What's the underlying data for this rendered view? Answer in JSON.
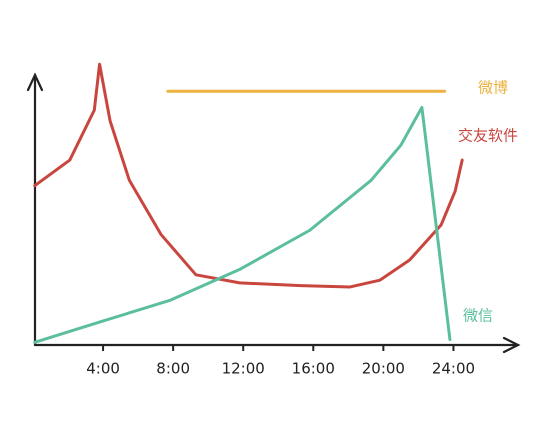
{
  "chart_data": {
    "type": "line",
    "xlim": [
      0,
      27.8
    ],
    "ylim": [
      0,
      110
    ],
    "xticks": [
      {
        "value": 4,
        "label": "4:00"
      },
      {
        "value": 8,
        "label": "8:00"
      },
      {
        "value": 12,
        "label": "12:00"
      },
      {
        "value": 16,
        "label": "16:00"
      },
      {
        "value": 20,
        "label": "20:00"
      },
      {
        "value": 24,
        "label": "24:00"
      }
    ],
    "series": [
      {
        "name": "微博",
        "color": "#ebb23f",
        "x": [
          7.7,
          23.5
        ],
        "values": [
          94,
          94
        ]
      },
      {
        "name": "交友软件",
        "color": "#c9463f",
        "x": [
          0.1,
          2.1,
          3.5,
          3.8,
          4.4,
          5.5,
          7.3,
          9.3,
          11.8,
          15.3,
          18.1,
          19.8,
          21.5,
          23.3,
          24.1,
          24.5
        ],
        "values": [
          59,
          68.5,
          87,
          104,
          83,
          61,
          41,
          26,
          23,
          22,
          21.5,
          24,
          31.5,
          44.5,
          57,
          68.5
        ]
      },
      {
        "name": "微信",
        "color": "#5cbf9b",
        "x": [
          0.1,
          3.8,
          7.8,
          11.8,
          15.8,
          19.3,
          21,
          22.2,
          23.8
        ],
        "values": [
          1,
          8.5,
          16.5,
          28,
          42.5,
          61,
          74,
          88,
          2
        ]
      }
    ]
  }
}
